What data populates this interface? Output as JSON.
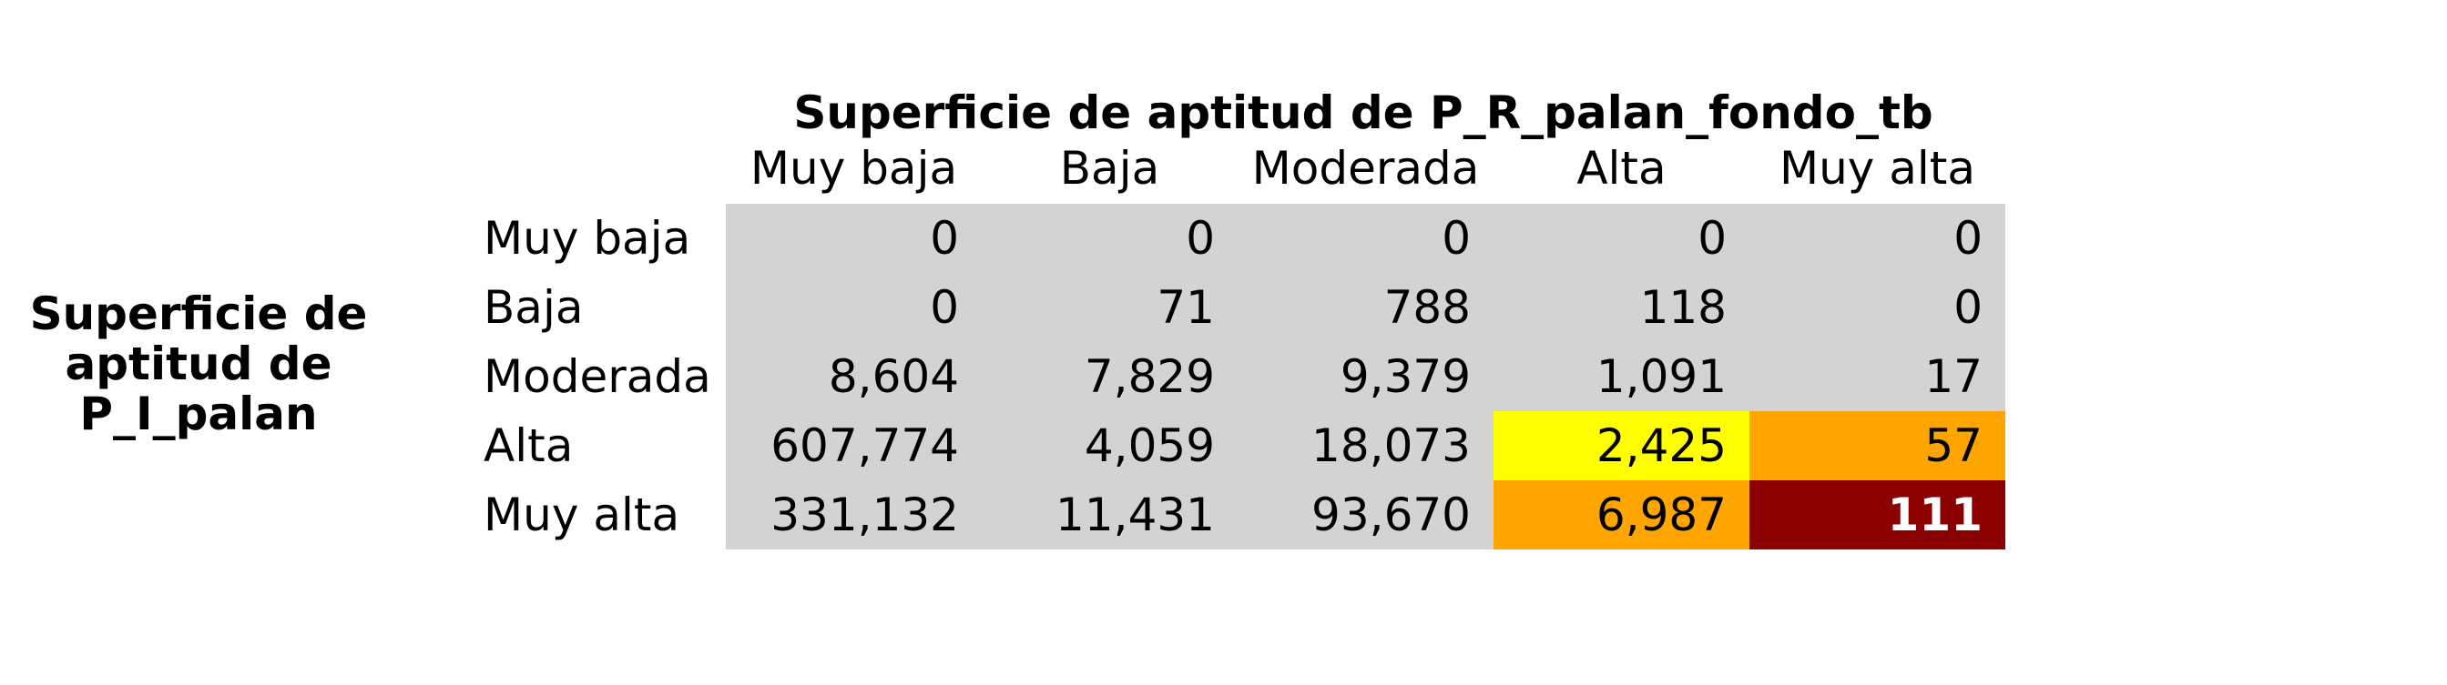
{
  "chart_data": {
    "type": "table",
    "title": "Superficie de aptitud de P_R_palan_fondo_tb",
    "row_title": "Superficie de aptitud de P_I_palan",
    "columns": [
      "Muy baja",
      "Baja",
      "Moderada",
      "Alta",
      "Muy alta"
    ],
    "rows": [
      "Muy baja",
      "Baja",
      "Moderada",
      "Alta",
      "Muy alta"
    ],
    "values": [
      [
        "0",
        "0",
        "0",
        "0",
        "0"
      ],
      [
        "0",
        "71",
        "788",
        "118",
        "0"
      ],
      [
        "8,604",
        "7,829",
        "9,379",
        "1,091",
        "17"
      ],
      [
        "607,774",
        "4,059",
        "18,073",
        "2,425",
        "57"
      ],
      [
        "331,132",
        "11,431",
        "93,670",
        "6,987",
        "111"
      ]
    ],
    "cell_colors": [
      [
        "#d3d3d3",
        "#d3d3d3",
        "#d3d3d3",
        "#d3d3d3",
        "#d3d3d3"
      ],
      [
        "#d3d3d3",
        "#d3d3d3",
        "#d3d3d3",
        "#d3d3d3",
        "#d3d3d3"
      ],
      [
        "#d3d3d3",
        "#d3d3d3",
        "#d3d3d3",
        "#d3d3d3",
        "#d3d3d3"
      ],
      [
        "#d3d3d3",
        "#d3d3d3",
        "#d3d3d3",
        "#ffff00",
        "#ffa500"
      ],
      [
        "#d3d3d3",
        "#d3d3d3",
        "#d3d3d3",
        "#ffa500",
        "#8b0000"
      ]
    ],
    "text_colors": [
      [
        "#000000",
        "#000000",
        "#000000",
        "#000000",
        "#000000"
      ],
      [
        "#000000",
        "#000000",
        "#000000",
        "#000000",
        "#000000"
      ],
      [
        "#000000",
        "#000000",
        "#000000",
        "#000000",
        "#000000"
      ],
      [
        "#000000",
        "#000000",
        "#000000",
        "#000000",
        "#000000"
      ],
      [
        "#000000",
        "#000000",
        "#000000",
        "#000000",
        "#ffffff"
      ]
    ],
    "bold_cells": [
      [
        4,
        4
      ]
    ]
  }
}
